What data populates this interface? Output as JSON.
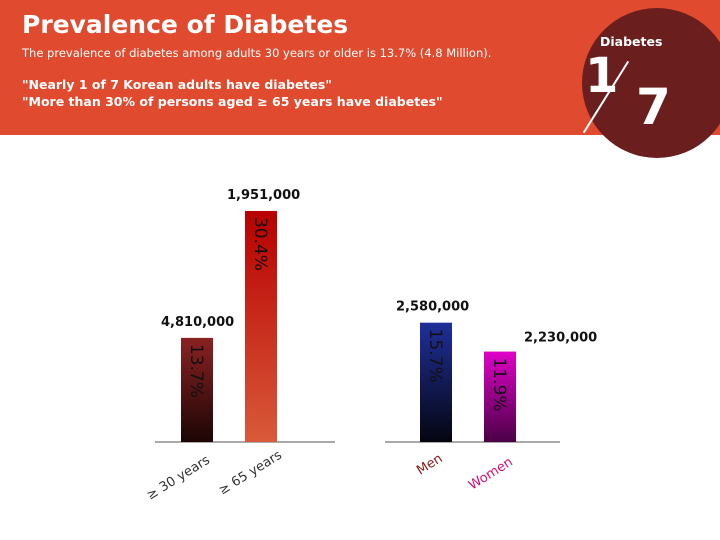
{
  "header": {
    "title": "Prevalence of Diabetes",
    "subtitle": "The prevalence of diabetes among adults 30 years or older is 13.7% (4.8 Million).",
    "quote_1": "\"Nearly 1 of 7 Korean adults have diabetes\"",
    "quote_2": "\"More than 30% of persons aged ≥ 65 years have diabetes\""
  },
  "badge": {
    "label": "Diabetes",
    "numerator": "1",
    "denominator": "7"
  },
  "colors": {
    "banner": "#e04a2e",
    "badge": "#6b1e1e",
    "axis": "#555555"
  },
  "chart_data": [
    {
      "type": "bar",
      "title": "",
      "xlabel": "",
      "ylabel": "",
      "categories": [
        "≥ 30 years",
        "≥ 65 years"
      ],
      "values": [
        13.7,
        30.4
      ],
      "value_labels": [
        "13.7%",
        "30.4%"
      ],
      "count_labels": [
        "4,810,000",
        "1,951,000"
      ],
      "colors": [
        [
          "#1c0505",
          "#8a2222"
        ],
        [
          "#d95a3a",
          "#b80000"
        ]
      ],
      "ylim": [
        0,
        32
      ]
    },
    {
      "type": "bar",
      "title": "",
      "xlabel": "",
      "ylabel": "",
      "categories": [
        "Men",
        "Women"
      ],
      "values": [
        15.7,
        11.9
      ],
      "value_labels": [
        "15.7%",
        "11.9%"
      ],
      "count_labels": [
        "2,580,000",
        "2,230,000"
      ],
      "colors": [
        [
          "#050510",
          "#1f2f99"
        ],
        [
          "#4a0045",
          "#e000c8"
        ]
      ],
      "category_colors": [
        "#8b1a1a",
        "#d01078"
      ],
      "ylim": [
        0,
        32
      ]
    }
  ]
}
